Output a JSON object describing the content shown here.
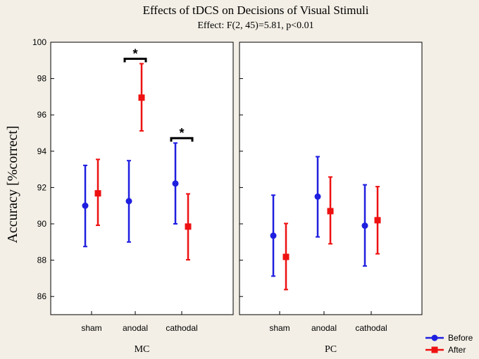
{
  "chart_data": {
    "type": "scatter",
    "title": "Effects of tDCS on Decisions of Visual Stimuli",
    "subtitle": "Effect: F(2, 45)=5.81, p<0.01",
    "ylabel": "Accuracy [%correct]",
    "ylim": [
      85,
      100
    ],
    "yticks": [
      86,
      88,
      90,
      92,
      94,
      96,
      98,
      100
    ],
    "categories": [
      "sham",
      "anodal",
      "cathodal"
    ],
    "series_colors": {
      "Before": "#1f1fe0",
      "After": "#ee1111"
    },
    "legend": [
      "Before",
      "After"
    ],
    "panels": [
      {
        "label": "MC",
        "series": [
          {
            "name": "Before",
            "marker": "circle",
            "mean": [
              91.0,
              91.25,
              92.22
            ],
            "lower": [
              88.75,
              89.0,
              90.0
            ],
            "upper": [
              93.22,
              93.48,
              94.45
            ]
          },
          {
            "name": "After",
            "marker": "square",
            "mean": [
              91.68,
              96.95,
              89.85
            ],
            "lower": [
              89.92,
              95.12,
              88.02
            ],
            "upper": [
              93.55,
              98.82,
              91.65
            ]
          }
        ],
        "significance": [
          {
            "category": "anodal",
            "label": "*"
          },
          {
            "category": "cathodal",
            "label": "*"
          }
        ]
      },
      {
        "label": "PC",
        "series": [
          {
            "name": "Before",
            "marker": "circle",
            "mean": [
              89.35,
              91.5,
              89.9
            ],
            "lower": [
              87.12,
              89.28,
              87.68
            ],
            "upper": [
              91.58,
              93.7,
              92.15
            ]
          },
          {
            "name": "After",
            "marker": "square",
            "mean": [
              88.18,
              90.7,
              90.2
            ],
            "lower": [
              86.38,
              88.9,
              88.35
            ],
            "upper": [
              90.02,
              92.58,
              92.05
            ]
          }
        ],
        "significance": []
      }
    ]
  }
}
